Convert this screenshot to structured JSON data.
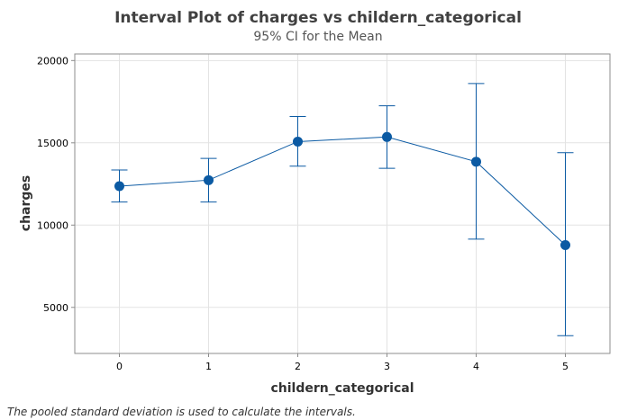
{
  "chart_data": {
    "type": "interval",
    "title": "Interval Plot of charges vs childern_categorical",
    "subtitle": "95% CI for the Mean",
    "xlabel": "childern_categorical",
    "ylabel": "charges",
    "categories": [
      "0",
      "1",
      "2",
      "3",
      "4",
      "5"
    ],
    "means": [
      12366,
      12731,
      15074,
      15355,
      13851,
      8786
    ],
    "ci_lower": [
      11400,
      11400,
      13580,
      13450,
      9150,
      3280
    ],
    "ci_upper": [
      13350,
      14050,
      16600,
      17250,
      18600,
      14400
    ],
    "yticks": [
      5000,
      10000,
      15000,
      20000
    ],
    "ylim": [
      2200,
      20400
    ],
    "grid": true,
    "colors": {
      "series": "#0b5aa3",
      "grid": "#e3e3e3",
      "frame": "#8c8c8c"
    }
  },
  "footnote": "The pooled standard deviation is used to calculate the intervals."
}
